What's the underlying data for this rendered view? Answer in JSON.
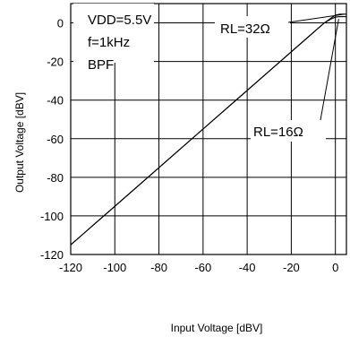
{
  "chart_data": {
    "type": "line",
    "title": "",
    "xlabel": "Input Voltage [dBV]",
    "ylabel": "Output Voltage [dBV]",
    "xlim": [
      -120,
      5
    ],
    "ylim": [
      -120,
      10
    ],
    "x_ticks": [
      -120,
      -100,
      -80,
      -60,
      -40,
      -20,
      0
    ],
    "y_ticks": [
      0,
      -20,
      -40,
      -60,
      -80,
      -100,
      -120
    ],
    "grid": true,
    "conditions": [
      "VDD=5.5V",
      "f=1kHz",
      "BPF"
    ],
    "series": [
      {
        "name": "RL=32Ω",
        "x": [
          -120,
          -118,
          -115,
          -110,
          -100,
          -80,
          -60,
          -40,
          -20,
          -10,
          -5,
          -2,
          0,
          2,
          5
        ],
        "y": [
          -115,
          -113,
          -110,
          -105,
          -95,
          -75,
          -55,
          -35,
          -15,
          -5,
          0,
          2.5,
          4,
          4.5,
          4.5
        ]
      },
      {
        "name": "RL=16Ω",
        "x": [
          -120,
          -118,
          -115,
          -110,
          -100,
          -80,
          -60,
          -40,
          -20,
          -10,
          -5,
          -2,
          0,
          2,
          5
        ],
        "y": [
          -115,
          -113,
          -110,
          -105,
          -95,
          -75,
          -55,
          -35,
          -15,
          -5,
          0,
          2,
          3,
          3.2,
          3.2
        ]
      }
    ],
    "annotations": [
      {
        "text": "RL=32Ω",
        "points_to": [
          4,
          4.5
        ]
      },
      {
        "text": "RL=16Ω",
        "points_to": [
          1.5,
          2
        ]
      }
    ]
  }
}
